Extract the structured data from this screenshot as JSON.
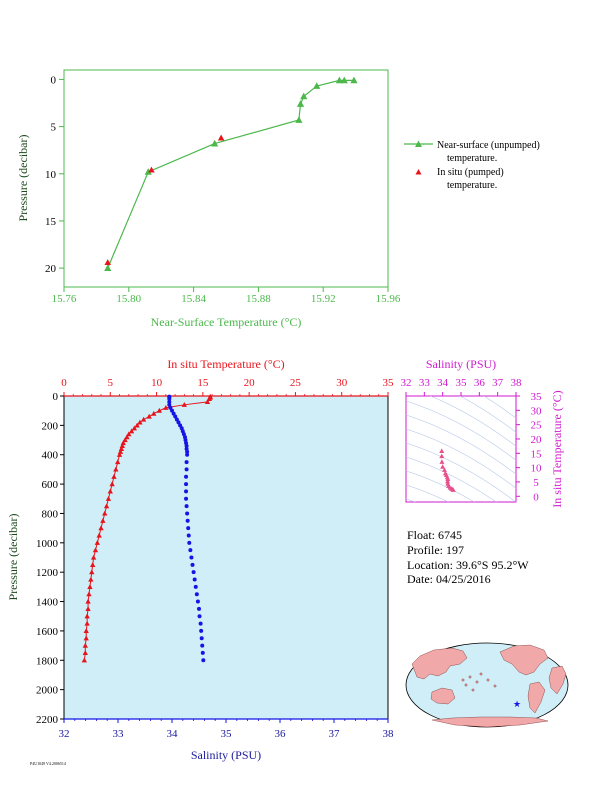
{
  "colors": {
    "green": "#4cb84c",
    "red": "#e8141c",
    "blue": "#1414e6",
    "magenta": "#d21ad2",
    "pink": "#e8508c",
    "panel_bg": "#cfeef7",
    "dark_green": "#1e4a1e",
    "navy": "#1a1a9e"
  },
  "chart_data": [
    {
      "type": "line",
      "xlabel": "Near-Surface Temperature (°C)",
      "ylabel": "Pressure (decibar)",
      "xlim": [
        15.76,
        15.96
      ],
      "ylim": [
        22,
        -1
      ],
      "x_ticks": [
        "15.76",
        "15.80",
        "15.84",
        "15.88",
        "15.92",
        "15.96"
      ],
      "y_ticks": [
        "0",
        "5",
        "10",
        "15",
        "20"
      ],
      "legend_position": "right",
      "series": [
        {
          "name": "Near-surface (unpumped) temperature.",
          "marker": "triangle-line",
          "points": [
            [
              15.787,
              20.0
            ],
            [
              15.812,
              9.8
            ],
            [
              15.853,
              6.8
            ],
            [
              15.905,
              4.3
            ],
            [
              15.906,
              2.6
            ],
            [
              15.908,
              1.8
            ],
            [
              15.916,
              0.7
            ],
            [
              15.93,
              0.1
            ],
            [
              15.933,
              0.1
            ],
            [
              15.939,
              0.1
            ]
          ]
        },
        {
          "name": "In situ (pumped) temperature.",
          "marker": "triangle",
          "points": [
            [
              15.787,
              19.4
            ],
            [
              15.814,
              9.6
            ],
            [
              15.857,
              6.2
            ]
          ]
        }
      ]
    },
    {
      "type": "scatter",
      "xlabel_top": "In situ Temperature (°C)",
      "xlabel_bottom": "Salinity (PSU)",
      "ylabel": "Pressure (decibar)",
      "temp_lim": [
        0,
        35
      ],
      "sal_lim": [
        32,
        38
      ],
      "ylim": [
        2200,
        0
      ],
      "temp_ticks": [
        "0",
        "5",
        "10",
        "15",
        "20",
        "25",
        "30",
        "35"
      ],
      "sal_ticks": [
        "32",
        "33",
        "34",
        "35",
        "36",
        "37",
        "38"
      ],
      "y_ticks": [
        "0",
        "200",
        "400",
        "600",
        "800",
        "1000",
        "1200",
        "1400",
        "1600",
        "1800",
        "2000",
        "2200"
      ],
      "series": [
        {
          "name": "In situ Temperature",
          "axis": "temperature",
          "points": [
            [
              15.8,
              4
            ],
            [
              15.8,
              10
            ],
            [
              15.7,
              20
            ],
            [
              15.5,
              40
            ],
            [
              13.0,
              60
            ],
            [
              11.0,
              80
            ],
            [
              10.3,
              100
            ],
            [
              9.7,
              120
            ],
            [
              9.2,
              140
            ],
            [
              8.6,
              160
            ],
            [
              8.2,
              180
            ],
            [
              7.9,
              200
            ],
            [
              7.6,
              220
            ],
            [
              7.3,
              240
            ],
            [
              7.0,
              260
            ],
            [
              6.8,
              280
            ],
            [
              6.6,
              300
            ],
            [
              6.4,
              320
            ],
            [
              6.3,
              340
            ],
            [
              6.2,
              360
            ],
            [
              6.1,
              380
            ],
            [
              6.0,
              400
            ],
            [
              5.8,
              450
            ],
            [
              5.6,
              500
            ],
            [
              5.4,
              550
            ],
            [
              5.2,
              600
            ],
            [
              5.0,
              650
            ],
            [
              4.8,
              700
            ],
            [
              4.6,
              750
            ],
            [
              4.4,
              800
            ],
            [
              4.2,
              850
            ],
            [
              4.0,
              900
            ],
            [
              3.8,
              950
            ],
            [
              3.6,
              1000
            ],
            [
              3.4,
              1050
            ],
            [
              3.2,
              1100
            ],
            [
              3.1,
              1150
            ],
            [
              3.0,
              1200
            ],
            [
              2.9,
              1250
            ],
            [
              2.8,
              1300
            ],
            [
              2.7,
              1350
            ],
            [
              2.6,
              1400
            ],
            [
              2.6,
              1450
            ],
            [
              2.5,
              1500
            ],
            [
              2.5,
              1550
            ],
            [
              2.4,
              1600
            ],
            [
              2.4,
              1650
            ],
            [
              2.3,
              1700
            ],
            [
              2.3,
              1750
            ],
            [
              2.2,
              1800
            ]
          ]
        },
        {
          "name": "Salinity",
          "axis": "salinity",
          "points": [
            [
              33.95,
              4
            ],
            [
              33.95,
              10
            ],
            [
              33.95,
              20
            ],
            [
              33.95,
              40
            ],
            [
              33.95,
              60
            ],
            [
              33.97,
              80
            ],
            [
              34.0,
              100
            ],
            [
              34.03,
              120
            ],
            [
              34.06,
              140
            ],
            [
              34.09,
              160
            ],
            [
              34.12,
              180
            ],
            [
              34.15,
              200
            ],
            [
              34.18,
              220
            ],
            [
              34.2,
              240
            ],
            [
              34.22,
              260
            ],
            [
              34.24,
              280
            ],
            [
              34.25,
              300
            ],
            [
              34.26,
              320
            ],
            [
              34.27,
              340
            ],
            [
              34.27,
              360
            ],
            [
              34.28,
              380
            ],
            [
              34.28,
              400
            ],
            [
              34.27,
              450
            ],
            [
              34.27,
              500
            ],
            [
              34.26,
              550
            ],
            [
              34.26,
              600
            ],
            [
              34.26,
              650
            ],
            [
              34.26,
              700
            ],
            [
              34.27,
              750
            ],
            [
              34.28,
              800
            ],
            [
              34.29,
              850
            ],
            [
              34.3,
              900
            ],
            [
              34.31,
              950
            ],
            [
              34.32,
              1000
            ],
            [
              34.34,
              1050
            ],
            [
              34.36,
              1100
            ],
            [
              34.38,
              1150
            ],
            [
              34.4,
              1200
            ],
            [
              34.42,
              1250
            ],
            [
              34.44,
              1300
            ],
            [
              34.46,
              1350
            ],
            [
              34.48,
              1400
            ],
            [
              34.5,
              1450
            ],
            [
              34.51,
              1500
            ],
            [
              34.53,
              1550
            ],
            [
              34.54,
              1600
            ],
            [
              34.55,
              1650
            ],
            [
              34.56,
              1700
            ],
            [
              34.57,
              1750
            ],
            [
              34.58,
              1800
            ]
          ]
        }
      ]
    },
    {
      "type": "scatter",
      "xlabel": "Salinity (PSU)",
      "ylabel": "In situ Temperature (°C)",
      "xlim": [
        32,
        38
      ],
      "ylim": [
        -2,
        35
      ],
      "x_ticks": [
        "32",
        "33",
        "34",
        "35",
        "36",
        "37",
        "38"
      ],
      "y_ticks": [
        "0",
        "5",
        "10",
        "15",
        "20",
        "25",
        "30",
        "35"
      ],
      "points": [
        [
          33.95,
          15.8
        ],
        [
          33.95,
          14.0
        ],
        [
          33.96,
          12.0
        ],
        [
          34.0,
          10.3
        ],
        [
          34.1,
          9.2
        ],
        [
          34.15,
          8.0
        ],
        [
          34.2,
          7.4
        ],
        [
          34.25,
          6.6
        ],
        [
          34.28,
          6.0
        ],
        [
          34.27,
          5.2
        ],
        [
          34.28,
          4.4
        ],
        [
          34.32,
          3.6
        ],
        [
          34.4,
          3.0
        ],
        [
          34.48,
          2.6
        ],
        [
          34.55,
          2.4
        ],
        [
          34.58,
          2.2
        ]
      ]
    }
  ],
  "legend": {
    "unpumped_line1": "Near-surface (unpumped)",
    "unpumped_line2": "temperature.",
    "pumped_line1": "In situ (pumped)",
    "pumped_line2": "temperature."
  },
  "info": {
    "float": "Float:  6745",
    "profile": "Profile:  197",
    "location": "Location:  39.6°S  95.2°W",
    "date": "Date:  04/25/2016"
  },
  "footer": "P4U1049 V4.2006514"
}
